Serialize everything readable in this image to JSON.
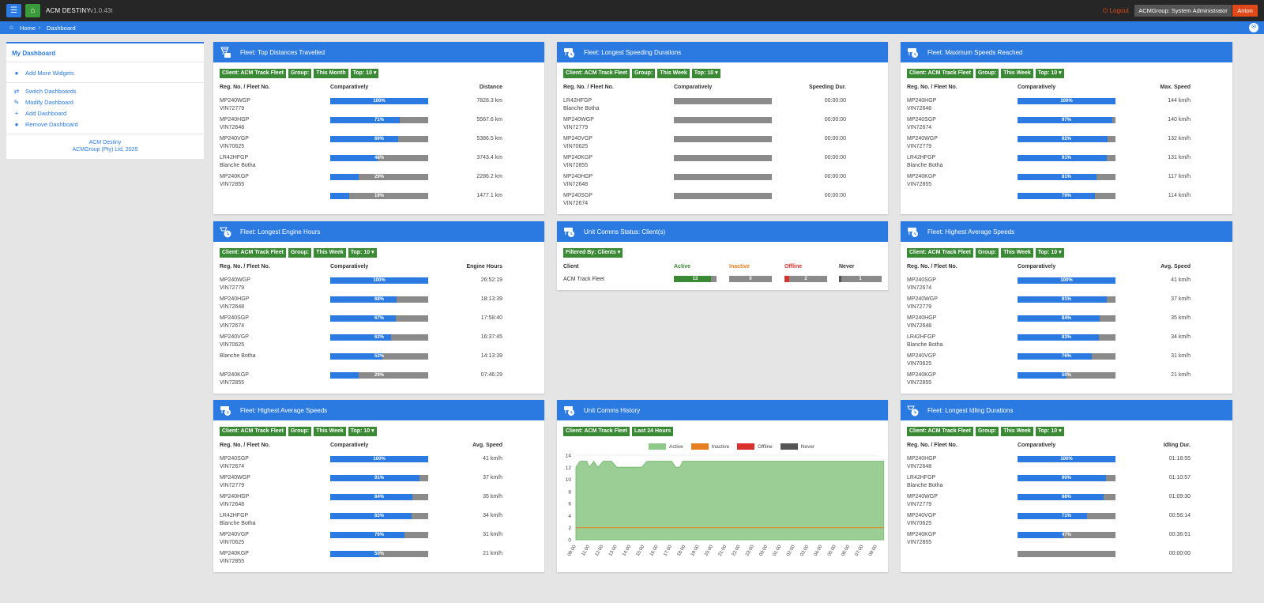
{
  "app": {
    "title": "ACM DESTINY",
    "version": "v1.0.43t",
    "logout": "Logout",
    "role": "ACMGroup: System Administrator",
    "user": "Anton"
  },
  "breadcrumb": {
    "home": "Home",
    "current": "Dashboard"
  },
  "sidebar": {
    "title": "My Dashboard",
    "add_widgets": "Add More Widgets",
    "items": [
      "Switch Dashboards",
      "Modify Dashboard",
      "Add Dashboard",
      "Remove Dashboard"
    ],
    "footer_line1": "ACM Destiny",
    "footer_line2": "ACMGroup (Pty) Ltd, 2025"
  },
  "widgets": {
    "top_distance": {
      "title": "Fleet: Top Distances Travelled",
      "filters": [
        "Client: ACM Track Fleet",
        "Group:",
        "This Month",
        "Top: 10 ▾"
      ],
      "col1": "Reg. No. / Fleet No.",
      "col2": "Comparatively",
      "col3": "Distance",
      "rows": [
        {
          "l1": "MP240WGP",
          "l2": "VIN72779",
          "pct": 100,
          "pct_label": "100%",
          "val": "7828.3 km"
        },
        {
          "l1": "MP240HGP",
          "l2": "VIN72648",
          "pct": 71,
          "pct_label": "71%",
          "val": "5567.6 km"
        },
        {
          "l1": "MP240VGP",
          "l2": "VIN70625",
          "pct": 69,
          "pct_label": "69%",
          "val": "5386.5 km"
        },
        {
          "l1": "LR42HFGP",
          "l2": "Blanche Botha",
          "pct": 48,
          "pct_label": "48%",
          "val": "3743.4 km"
        },
        {
          "l1": "MP240KGP",
          "l2": "VIN72855",
          "pct": 29,
          "pct_label": "29%",
          "val": "2286.2 km"
        },
        {
          "l1": "",
          "l2": "",
          "pct": 19,
          "pct_label": "19%",
          "val": "1477.1 km"
        }
      ]
    },
    "speeding": {
      "title": "Fleet: Longest Speeding Durations",
      "filters": [
        "Client: ACM Track Fleet",
        "Group:",
        "This Week",
        "Top: 10 ▾"
      ],
      "col1": "Reg. No. / Fleet No.",
      "col2": "Comparatively",
      "col3": "Speeding Dur.",
      "rows": [
        {
          "l1": "LR42HFGP",
          "l2": "Blanche Botha",
          "pct": 0,
          "pct_label": "",
          "val": "00:00:00"
        },
        {
          "l1": "MP240WGP",
          "l2": "VIN72779",
          "pct": 0,
          "pct_label": "",
          "val": "00:00:00"
        },
        {
          "l1": "MP240VGP",
          "l2": "VIN70625",
          "pct": 0,
          "pct_label": "",
          "val": "00:00:00"
        },
        {
          "l1": "MP240KGP",
          "l2": "VIN72855",
          "pct": 0,
          "pct_label": "",
          "val": "00:00:00"
        },
        {
          "l1": "MP240HGP",
          "l2": "VIN72648",
          "pct": 0,
          "pct_label": "",
          "val": "00:00:00"
        },
        {
          "l1": "MP240SGP",
          "l2": "VIN72674",
          "pct": 0,
          "pct_label": "",
          "val": "00:00:00"
        }
      ]
    },
    "max_speed": {
      "title": "Fleet: Maximum Speeds Reached",
      "filters": [
        "Client: ACM Track Fleet",
        "Group:",
        "This Week",
        "Top: 10 ▾"
      ],
      "col1": "Reg. No. / Fleet No.",
      "col2": "Comparatively",
      "col3": "Max. Speed",
      "rows": [
        {
          "l1": "MP240HGP",
          "l2": "VIN72648",
          "pct": 100,
          "pct_label": "100%",
          "val": "144 km/h"
        },
        {
          "l1": "MP240SGP",
          "l2": "VIN72674",
          "pct": 97,
          "pct_label": "97%",
          "val": "140 km/h"
        },
        {
          "l1": "MP240WGP",
          "l2": "VIN72779",
          "pct": 92,
          "pct_label": "92%",
          "val": "132 km/h"
        },
        {
          "l1": "LR42HFGP",
          "l2": "Blanche Botha",
          "pct": 91,
          "pct_label": "91%",
          "val": "131 km/h"
        },
        {
          "l1": "MP240KGP",
          "l2": "VIN72855",
          "pct": 81,
          "pct_label": "81%",
          "val": "117 km/h"
        },
        {
          "l1": "",
          "l2": "",
          "pct": 79,
          "pct_label": "79%",
          "val": "114 km/h"
        }
      ]
    },
    "engine_hours": {
      "title": "Fleet: Longest Engine Hours",
      "filters": [
        "Client: ACM Track Fleet",
        "Group:",
        "This Week",
        "Top: 10 ▾"
      ],
      "col1": "Reg. No. / Fleet No.",
      "col2": "Comparatively",
      "col3": "Engine Hours",
      "rows": [
        {
          "l1": "MP240WGP",
          "l2": "VIN72779",
          "pct": 100,
          "pct_label": "100%",
          "val": "26:52:19"
        },
        {
          "l1": "MP240HGP",
          "l2": "VIN72648",
          "pct": 68,
          "pct_label": "68%",
          "val": "18:13:39"
        },
        {
          "l1": "MP240SGP",
          "l2": "VIN72674",
          "pct": 67,
          "pct_label": "67%",
          "val": "17:58:40"
        },
        {
          "l1": "MP240VGP",
          "l2": "VIN70625",
          "pct": 62,
          "pct_label": "62%",
          "val": "16:37:45"
        },
        {
          "l1": "Blanche Botha",
          "l2": "",
          "pct": 53,
          "pct_label": "53%",
          "val": "14:13:39"
        },
        {
          "l1": "MP240KGP",
          "l2": "VIN72855",
          "pct": 29,
          "pct_label": "29%",
          "val": "07:46:29"
        }
      ]
    },
    "comms_status": {
      "title": "Unit Comms Status: Client(s)",
      "filter": "Filtered By: Clients ▾",
      "col_client": "Client",
      "col_active": "Active",
      "col_inactive": "Inactive",
      "col_offline": "Offline",
      "col_never": "Never",
      "client": "ACM Track Fleet",
      "active": "13",
      "inactive": "0",
      "offline": "2",
      "never": "1",
      "active_frac": 0.87,
      "offline_frac": 0.12,
      "never_frac": 0.06,
      "colors": {
        "active": "#3a8a35",
        "inactive": "#e67e22",
        "offline": "#d9312b",
        "never": "#555555"
      }
    },
    "avg_speed_right": {
      "title": "Fleet: Highest Average Speeds",
      "filters": [
        "Client: ACM Track Fleet",
        "Group:",
        "This Week",
        "Top: 10 ▾"
      ],
      "col1": "Reg. No. / Fleet No.",
      "col2": "Comparatively",
      "col3": "Avg. Speed",
      "rows": [
        {
          "l1": "MP240SGP",
          "l2": "VIN72674",
          "pct": 100,
          "pct_label": "100%",
          "val": "41 km/h"
        },
        {
          "l1": "MP240WGP",
          "l2": "VIN72779",
          "pct": 91,
          "pct_label": "91%",
          "val": "37 km/h"
        },
        {
          "l1": "MP240HGP",
          "l2": "VIN72648",
          "pct": 84,
          "pct_label": "84%",
          "val": "35 km/h"
        },
        {
          "l1": "LR42HFGP",
          "l2": "Blanche Botha",
          "pct": 83,
          "pct_label": "83%",
          "val": "34 km/h"
        },
        {
          "l1": "MP240VGP",
          "l2": "VIN70625",
          "pct": 76,
          "pct_label": "76%",
          "val": "31 km/h"
        },
        {
          "l1": "MP240KGP",
          "l2": "VIN72855",
          "pct": 50,
          "pct_label": "50%",
          "val": "21 km/h"
        }
      ]
    },
    "avg_speed_left": {
      "title": "Fleet: Highest Average Speeds",
      "filters": [
        "Client: ACM Track Fleet",
        "Group:",
        "This Week",
        "Top: 10 ▾"
      ],
      "col1": "Reg. No. / Fleet No.",
      "col2": "Comparatively",
      "col3": "Avg. Speed",
      "rows": [
        {
          "l1": "MP240SGP",
          "l2": "VIN72674",
          "pct": 100,
          "pct_label": "100%",
          "val": "41 km/h"
        },
        {
          "l1": "MP240WGP",
          "l2": "VIN72779",
          "pct": 91,
          "pct_label": "91%",
          "val": "37 km/h"
        },
        {
          "l1": "MP240HGP",
          "l2": "VIN72648",
          "pct": 84,
          "pct_label": "84%",
          "val": "35 km/h"
        },
        {
          "l1": "LR42HFGP",
          "l2": "Blanche Botha",
          "pct": 83,
          "pct_label": "83%",
          "val": "34 km/h"
        },
        {
          "l1": "MP240VGP",
          "l2": "VIN70625",
          "pct": 76,
          "pct_label": "76%",
          "val": "31 km/h"
        },
        {
          "l1": "MP240KGP",
          "l2": "VIN72855",
          "pct": 50,
          "pct_label": "50%",
          "val": "21 km/h"
        }
      ]
    },
    "comms_history": {
      "title": "Unit Comms History",
      "filters": [
        "Client: ACM Track Fleet",
        "Last 24 Hours"
      ]
    },
    "idling": {
      "title": "Fleet: Longest Idling Durations",
      "filters": [
        "Client: ACM Track Fleet",
        "Group:",
        "This Week",
        "Top: 10 ▾"
      ],
      "col1": "Reg. No. / Fleet No.",
      "col2": "Comparatively",
      "col3": "Idling Dur.",
      "rows": [
        {
          "l1": "MP240HGP",
          "l2": "VIN72648",
          "pct": 100,
          "pct_label": "100%",
          "val": "01:18:55"
        },
        {
          "l1": "LR42HFGP",
          "l2": "Blanche Botha",
          "pct": 90,
          "pct_label": "90%",
          "val": "01:10:57"
        },
        {
          "l1": "MP240WGP",
          "l2": "VIN72779",
          "pct": 88,
          "pct_label": "88%",
          "val": "01:09:30"
        },
        {
          "l1": "MP240VGP",
          "l2": "VIN70625",
          "pct": 71,
          "pct_label": "71%",
          "val": "00:56:14"
        },
        {
          "l1": "MP240KGP",
          "l2": "VIN72855",
          "pct": 47,
          "pct_label": "47%",
          "val": "00:36:51"
        },
        {
          "l1": "",
          "l2": "",
          "pct": 0,
          "pct_label": "",
          "val": "00:00:00"
        }
      ]
    }
  },
  "chart_data": {
    "type": "area",
    "x": [
      "09:00",
      "11:00",
      "12:00",
      "13:00",
      "14:00",
      "15:00",
      "16:00",
      "17:00",
      "18:00",
      "19:00",
      "20:00",
      "21:00",
      "22:00",
      "23:00",
      "00:00",
      "01:00",
      "02:00",
      "03:00",
      "04:00",
      "05:00",
      "06:00",
      "07:00",
      "08:00"
    ],
    "ylim": [
      0,
      14
    ],
    "yticks": [
      0,
      2,
      4,
      6,
      8,
      10,
      12,
      14
    ],
    "series": [
      {
        "name": "Active",
        "color": "#8fc98a",
        "points": [
          [
            0,
            12
          ],
          [
            0.3,
            13
          ],
          [
            0.8,
            13
          ],
          [
            1,
            12
          ],
          [
            1.3,
            13
          ],
          [
            1.6,
            12
          ],
          [
            2,
            13
          ],
          [
            2.6,
            13
          ],
          [
            3,
            12
          ],
          [
            4.8,
            12
          ],
          [
            5.2,
            13
          ],
          [
            7,
            13
          ],
          [
            7.3,
            12
          ],
          [
            7.6,
            12
          ],
          [
            7.8,
            13
          ],
          [
            22.5,
            13
          ]
        ]
      },
      {
        "name": "Inactive",
        "color": "#e67e22",
        "points": [
          [
            0,
            2
          ],
          [
            22.5,
            2
          ]
        ]
      },
      {
        "name": "Offline",
        "color": "#d9312b",
        "points": []
      },
      {
        "name": "Never",
        "color": "#555555",
        "points": []
      }
    ]
  }
}
